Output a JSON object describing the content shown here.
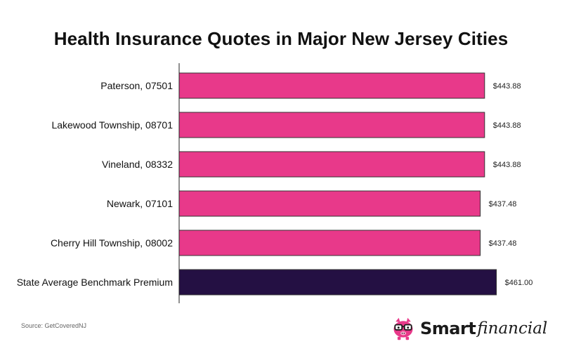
{
  "chart_data": {
    "type": "bar",
    "orientation": "horizontal",
    "title": "Health Insurance Quotes in Major New Jersey Cities",
    "categories": [
      "Paterson, 07501",
      "Lakewood Township, 08701",
      "Vineland, 08332",
      "Newark, 07101",
      "Cherry Hill Township, 08002",
      "State Average Benchmark Premium"
    ],
    "values": [
      443.88,
      443.88,
      443.88,
      437.48,
      437.48,
      461.0
    ],
    "value_labels": [
      "$443.88",
      "$443.88",
      "$443.88",
      "$437.48",
      "$437.48",
      "$461.00"
    ],
    "bar_colors": [
      "#e8398a",
      "#e8398a",
      "#e8398a",
      "#e8398a",
      "#e8398a",
      "#241043"
    ],
    "xlim": [
      0,
      490
    ],
    "grid": false,
    "xlabel": "",
    "ylabel": ""
  },
  "source": "Source: GetCoveredNJ",
  "logo": {
    "icon": "piggy-bank-with-glasses-icon",
    "smart": "Smart",
    "financial": "financial",
    "icon_color": "#e8398a"
  }
}
